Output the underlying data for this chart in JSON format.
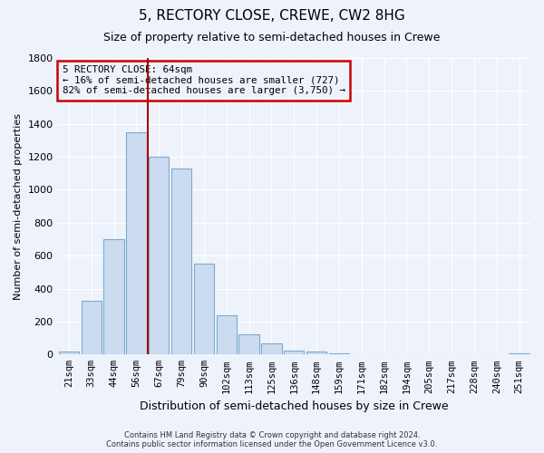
{
  "title": "5, RECTORY CLOSE, CREWE, CW2 8HG",
  "subtitle": "Size of property relative to semi-detached houses in Crewe",
  "xlabel": "Distribution of semi-detached houses by size in Crewe",
  "ylabel": "Number of semi-detached properties",
  "bar_labels": [
    "21sqm",
    "33sqm",
    "44sqm",
    "56sqm",
    "67sqm",
    "79sqm",
    "90sqm",
    "102sqm",
    "113sqm",
    "125sqm",
    "136sqm",
    "148sqm",
    "159sqm",
    "171sqm",
    "182sqm",
    "194sqm",
    "205sqm",
    "217sqm",
    "228sqm",
    "240sqm",
    "251sqm"
  ],
  "bar_values": [
    20,
    325,
    700,
    1350,
    1200,
    1130,
    550,
    240,
    120,
    65,
    25,
    20,
    5,
    2,
    1,
    1,
    1,
    1,
    1,
    1,
    5
  ],
  "bar_color": "#ccdcf0",
  "bar_edge_color": "#7aaad0",
  "vline_color": "#aa0000",
  "vline_x_index": 3,
  "annotation_title": "5 RECTORY CLOSE: 64sqm",
  "annotation_line1": "← 16% of semi-detached houses are smaller (727)",
  "annotation_line2": "82% of semi-detached houses are larger (3,750) →",
  "annotation_box_edgecolor": "#cc0000",
  "ylim": [
    0,
    1800
  ],
  "yticks": [
    0,
    200,
    400,
    600,
    800,
    1000,
    1200,
    1400,
    1600,
    1800
  ],
  "footer_line1": "Contains HM Land Registry data © Crown copyright and database right 2024.",
  "footer_line2": "Contains public sector information licensed under the Open Government Licence v3.0.",
  "bg_color": "#eef2fb",
  "grid_color": "#ffffff",
  "title_fontsize": 11,
  "subtitle_fontsize": 9
}
